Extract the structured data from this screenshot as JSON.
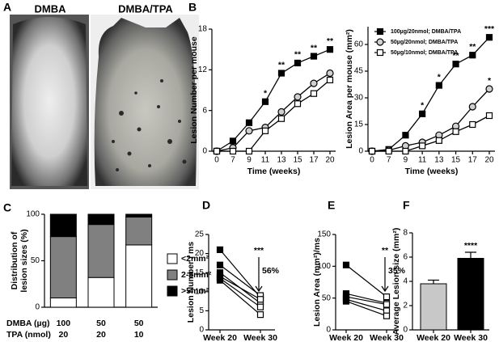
{
  "panel_a": {
    "label": "A",
    "captions": [
      "DMBA",
      "DMBA/TPA"
    ]
  },
  "chart_data": [
    {
      "type": "line",
      "panel": "B",
      "categories": [
        "0",
        "7",
        "9",
        "11",
        "13",
        "15",
        "17",
        "20"
      ],
      "x_label": "Time (weeks)",
      "y_label": "Lesion Number per mouse",
      "ylim": [
        0,
        18
      ],
      "yticks": [
        0,
        6,
        12,
        18
      ],
      "series": [
        {
          "marker": "square-filled",
          "color": "#000000",
          "values": [
            0,
            1.5,
            4.2,
            7.3,
            11.5,
            13,
            14,
            15
          ],
          "significance": [
            null,
            null,
            null,
            "*",
            "**",
            "**",
            "**",
            "**"
          ]
        },
        {
          "marker": "circle",
          "color": "#000000",
          "values": [
            0,
            0.5,
            3,
            3.5,
            5.8,
            8,
            10,
            11.5
          ]
        },
        {
          "marker": "square-open",
          "color": "#000000",
          "values": [
            0,
            0,
            0,
            3,
            4.8,
            7,
            8.5,
            10.5
          ]
        }
      ]
    },
    {
      "type": "line",
      "categories": [
        "0",
        "7",
        "9",
        "11",
        "13",
        "15",
        "17",
        "20"
      ],
      "x_label": "Time (weeks)",
      "y_label": "Lesion Area per mouse (mm²)",
      "ylim": [
        0,
        70
      ],
      "yticks": [
        0,
        15,
        30,
        45,
        60
      ],
      "legend": "upper left",
      "series": [
        {
          "name": "100µg/20nmol; DMBA/TPA",
          "marker": "square-filled",
          "color": "#000000",
          "values": [
            0,
            1,
            9,
            21,
            37,
            49,
            54,
            64
          ],
          "significance": [
            null,
            null,
            null,
            "*",
            "*",
            "**",
            "**",
            "***"
          ]
        },
        {
          "name": "50µg/20nmol; DMBA/TPA",
          "marker": "circle",
          "color": "#000000",
          "values": [
            0,
            0.5,
            3,
            5,
            9,
            14,
            25,
            35
          ],
          "significance": [
            null,
            null,
            null,
            null,
            null,
            null,
            null,
            "*"
          ]
        },
        {
          "name": "50µg/10nmol; DMBA/TPA",
          "marker": "square-open",
          "color": "#000000",
          "values": [
            0,
            0,
            0,
            3,
            6,
            11,
            15,
            20
          ]
        }
      ]
    },
    {
      "type": "stacked_bar",
      "panel": "C",
      "y_label": [
        "Distribution of",
        "lesion sizes (%)"
      ],
      "category_rows": [
        {
          "label": "DMBA (µg)",
          "values": [
            100,
            50,
            50
          ]
        },
        {
          "label": "TPA (nmol)",
          "values": [
            20,
            20,
            10
          ]
        }
      ],
      "ylim": [
        0,
        100
      ],
      "yticks": [
        0,
        50,
        100
      ],
      "series": [
        {
          "name": "<2mm²",
          "color": "#ffffff",
          "values": [
            10,
            32,
            67
          ]
        },
        {
          "name": "2-5mm²",
          "color": "#808080",
          "values": [
            66,
            57,
            30
          ]
        },
        {
          "name": ">5mm²",
          "color": "#000000",
          "values": [
            24,
            11,
            3
          ]
        }
      ]
    },
    {
      "type": "paired",
      "panel": "D",
      "categories": [
        "Week 20",
        "Week 30"
      ],
      "y_label": "Lesion Number / ms",
      "ylim": [
        0,
        25
      ],
      "yticks": [
        0,
        5,
        10,
        15,
        20,
        25
      ],
      "significance": "***",
      "change_label": "56%",
      "series": [
        {
          "values": [
            21,
            8.5
          ]
        },
        {
          "values": [
            17,
            9
          ]
        },
        {
          "values": [
            15,
            7
          ]
        },
        {
          "values": [
            14,
            8
          ]
        },
        {
          "values": [
            13.5,
            6
          ]
        },
        {
          "values": [
            13,
            4
          ]
        }
      ]
    },
    {
      "type": "paired",
      "panel": "E",
      "categories": [
        "Week 20",
        "Week 30"
      ],
      "y_label": "Lesion Area (mm²)/ms",
      "ylim": [
        0,
        150
      ],
      "yticks": [
        0,
        50,
        100,
        150
      ],
      "significance": "**",
      "change_label": "35%",
      "series": [
        {
          "values": [
            102,
            52
          ]
        },
        {
          "values": [
            57,
            42
          ]
        },
        {
          "values": [
            52,
            40
          ]
        },
        {
          "values": [
            48,
            30
          ]
        },
        {
          "values": [
            45,
            22
          ]
        }
      ]
    },
    {
      "type": "bar",
      "panel": "F",
      "categories": [
        "Week 20",
        "Week 30"
      ],
      "y_label": "Average Lesion size (mm²)",
      "ylim": [
        0,
        8
      ],
      "yticks": [
        0,
        2,
        4,
        6,
        8
      ],
      "values": [
        3.8,
        5.9
      ],
      "errors": [
        0.3,
        0.5
      ],
      "colors": [
        "#c8c8c8",
        "#000000"
      ],
      "significance": [
        null,
        "****"
      ]
    }
  ]
}
